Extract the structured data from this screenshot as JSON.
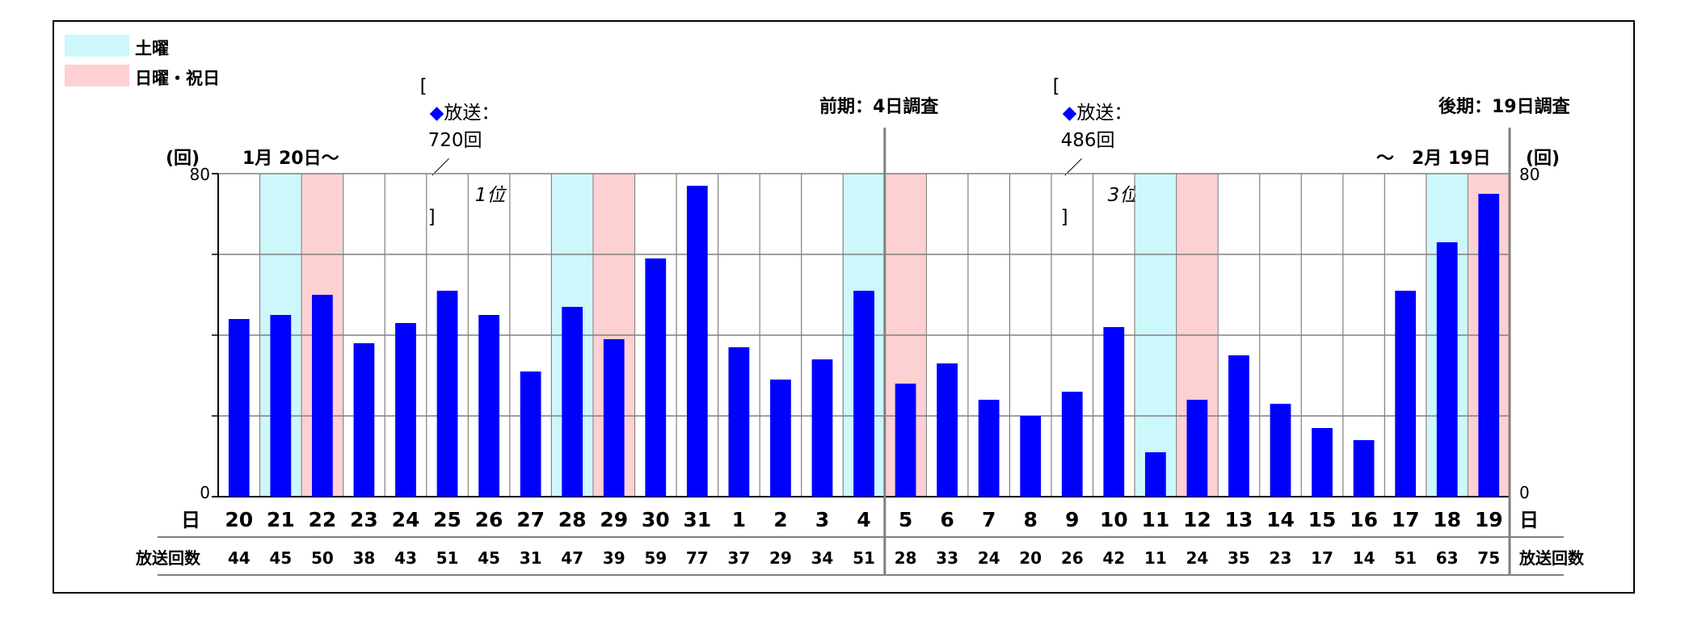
{
  "legend": [
    {
      "label": "土曜",
      "color": "#ccf7fb"
    },
    {
      "label": "日曜・祝日",
      "color": "#fdd0d2"
    }
  ],
  "summaries": [
    {
      "open": "[",
      "marker": "◆",
      "label": "放送：",
      "count": "720回",
      "slash": "／",
      "rank": "1位",
      "close": "]"
    },
    {
      "open": "[",
      "marker": "◆",
      "label": "放送：",
      "count": "486回",
      "slash": "／",
      "rank": "3位",
      "close": "]"
    }
  ],
  "survey_labels": {
    "first": "前期：4日調査",
    "second": "後期：19日調査"
  },
  "axis": {
    "unit_left": "(回)",
    "unit_right": "(回)",
    "start_date": "1月 20日～",
    "end_date": "～　2月 19日",
    "ymin_label": "0",
    "ymax_label": "80",
    "day_row_label": "日",
    "count_row_label": "放送回数"
  },
  "colors": {
    "bar": "#0000ff",
    "saturday": "#ccf7fb",
    "holiday": "#fdd0d2",
    "grid": "#808080"
  },
  "chart_data": {
    "type": "bar",
    "categories": [
      "20",
      "21",
      "22",
      "23",
      "24",
      "25",
      "26",
      "27",
      "28",
      "29",
      "30",
      "31",
      "1",
      "2",
      "3",
      "4",
      "5",
      "6",
      "7",
      "8",
      "9",
      "10",
      "11",
      "12",
      "13",
      "14",
      "15",
      "16",
      "17",
      "18",
      "19"
    ],
    "values": [
      44,
      45,
      50,
      38,
      43,
      51,
      45,
      31,
      47,
      39,
      59,
      77,
      37,
      29,
      34,
      51,
      28,
      33,
      24,
      20,
      26,
      42,
      11,
      24,
      35,
      23,
      17,
      14,
      51,
      63,
      75
    ],
    "day_types": [
      "",
      "sat",
      "sun",
      "",
      "",
      "",
      "",
      "",
      "sat",
      "sun",
      "",
      "",
      "",
      "",
      "",
      "sat",
      "sun",
      "",
      "",
      "",
      "",
      "",
      "sat",
      "sun",
      "",
      "",
      "",
      "",
      "",
      "sat",
      "sun"
    ],
    "ylim": [
      0,
      80
    ],
    "grid": true,
    "period_split_after": "4",
    "series": [
      {
        "name": "放送回数",
        "values": [
          44,
          45,
          50,
          38,
          43,
          51,
          45,
          31,
          47,
          39,
          59,
          77,
          37,
          29,
          34,
          51,
          28,
          33,
          24,
          20,
          26,
          42,
          11,
          24,
          35,
          23,
          17,
          14,
          51,
          63,
          75
        ]
      }
    ]
  }
}
